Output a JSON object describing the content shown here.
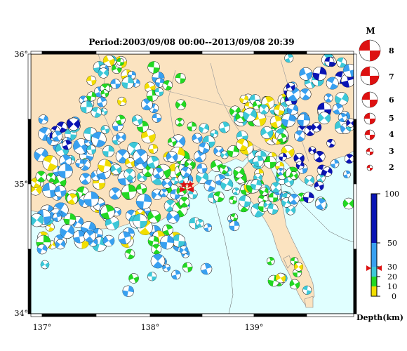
{
  "title": "Period:2003/09/08 00:00--2013/09/08 20:39",
  "map": {
    "lon_range": [
      136.85,
      139.95
    ],
    "lat_range": [
      34.0,
      36.0
    ],
    "lon_ticks": [
      "137°",
      "138°",
      "139°"
    ],
    "lat_ticks": [
      "36°",
      "35°",
      "34°"
    ],
    "land_color": "#fbe3c0",
    "sea_color": "#e0ffff"
  },
  "magnitude_legend": {
    "header": "M",
    "items": [
      "8",
      "7",
      "6",
      "5",
      "4",
      "3",
      "2"
    ]
  },
  "depth_scale": {
    "ticks": [
      "100",
      "50",
      "30",
      "20",
      "10",
      "0"
    ],
    "label": "Depth(km)",
    "colors": {
      "shallow": "#f2de00",
      "d10_20": "#22d822",
      "d20_30": "#3cc8d8",
      "d30_100": "#38a0f0",
      "deep": "#0a14b4"
    }
  },
  "main_shock": {
    "marker_color": "#dd1111"
  }
}
